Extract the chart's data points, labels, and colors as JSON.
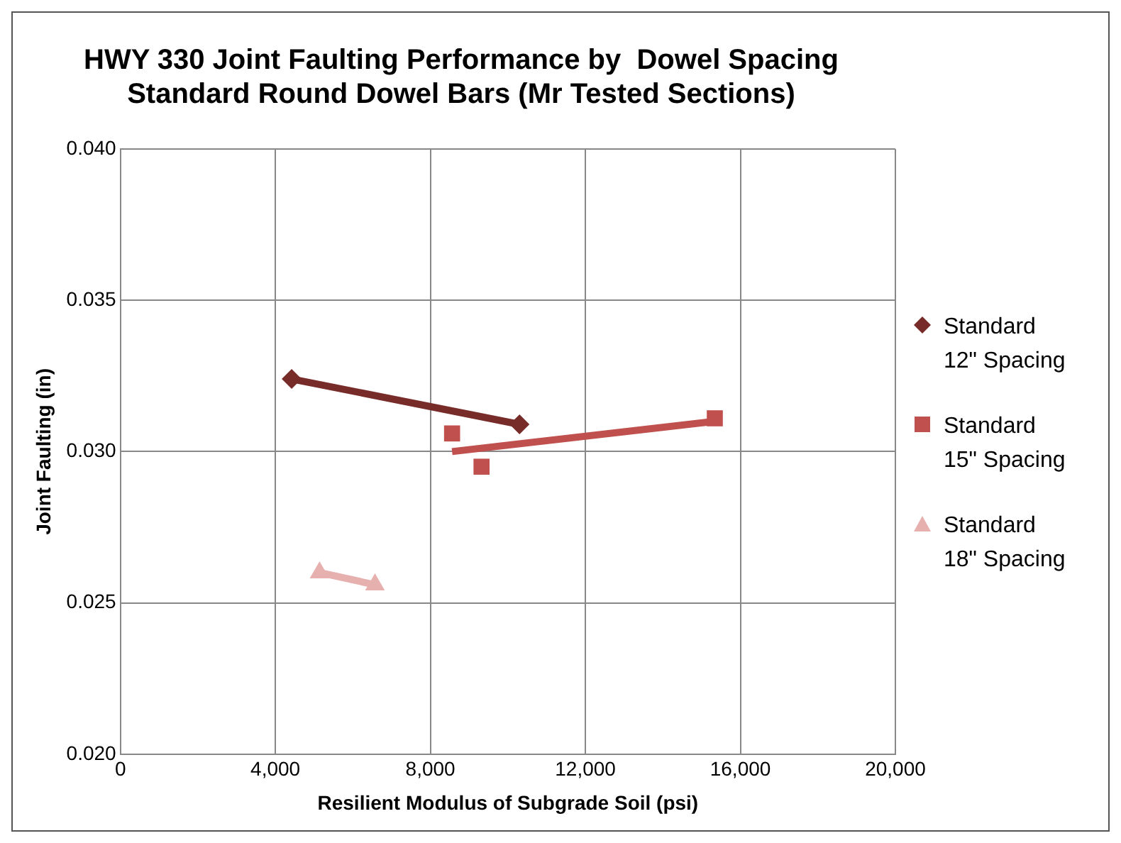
{
  "chart_data": {
    "type": "scatter",
    "title": [
      "HWY 330 Joint Faulting Performance by  Dowel Spacing",
      "Standard Round Dowel Bars (Mr Tested Sections)"
    ],
    "xlabel": "Resilient Modulus of Subgrade Soil (psi)",
    "ylabel": "Joint Faulting (in)",
    "xlim": [
      0,
      20000
    ],
    "xticks": [
      0,
      {
        "value": 4000,
        "label": "4,000"
      },
      {
        "value": 8000,
        "label": "8,000"
      },
      {
        "value": 12000,
        "label": "12,000"
      },
      {
        "value": 16000,
        "label": "16,000"
      },
      {
        "value": 20000,
        "label": "20,000"
      }
    ],
    "ylim": [
      0.02,
      0.04
    ],
    "yticks": [
      {
        "value": 0.02,
        "label": "0.020"
      },
      {
        "value": 0.025,
        "label": "0.025"
      },
      {
        "value": 0.03,
        "label": "0.030"
      },
      {
        "value": 0.035,
        "label": "0.035"
      },
      {
        "value": 0.04,
        "label": "0.040"
      }
    ],
    "grid": true,
    "legend": "right",
    "series": [
      {
        "type": "scatter",
        "name": "Standard 12\" Spacing",
        "color": "#772c2a",
        "marker": "diamond",
        "x": [
          4420,
          10300
        ],
        "values": [
          0.0324,
          0.0309
        ]
      },
      {
        "type": "scatter",
        "name": "Standard 15\" Spacing",
        "color": "#c0504d",
        "marker": "square",
        "x": [
          8560,
          9320,
          15340
        ],
        "values": [
          0.0306,
          0.0295,
          0.0311
        ]
      },
      {
        "type": "scatter",
        "name": "Standard 18\" Spacing",
        "color": "#e6b0ae",
        "marker": "triangle",
        "x": [
          5140,
          6570
        ],
        "values": [
          0.026,
          0.0256
        ]
      },
      {
        "type": "line",
        "color": "#772c2a",
        "x": [
          4420,
          10300
        ],
        "values": [
          0.0324,
          0.0309
        ]
      },
      {
        "type": "line",
        "color": "#c0504d",
        "x": [
          8560,
          15340
        ],
        "values": [
          0.03,
          0.031
        ]
      },
      {
        "type": "line",
        "color": "#e6b0ae",
        "x": [
          5140,
          6570
        ],
        "values": [
          0.026,
          0.0256
        ]
      }
    ]
  }
}
